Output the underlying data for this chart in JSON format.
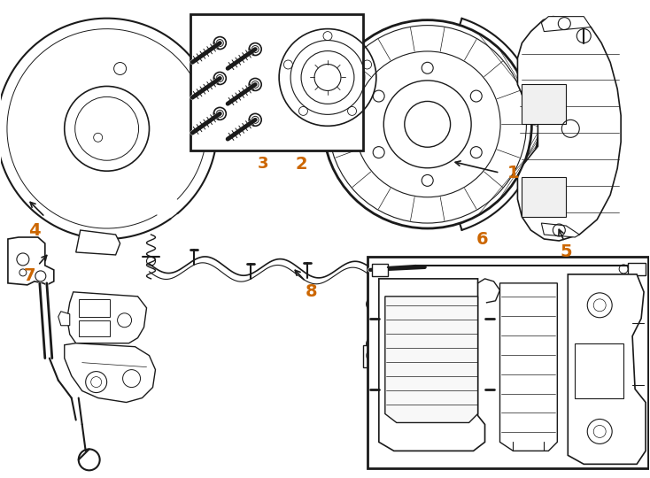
{
  "bg_color": "#ffffff",
  "line_color": "#1a1a1a",
  "number_color": "#cc6600",
  "fig_width": 7.34,
  "fig_height": 5.4,
  "dpi": 100
}
